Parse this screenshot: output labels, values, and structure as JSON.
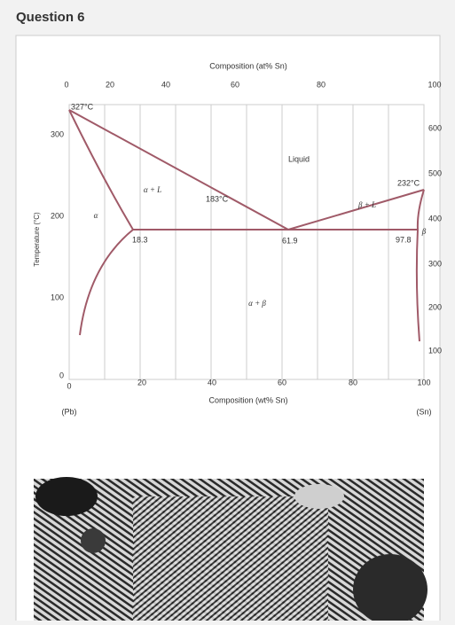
{
  "header": {
    "title": "Question 6"
  },
  "diagram": {
    "top_axis_title": "Composition (at% Sn)",
    "top_ticks": [
      0,
      20,
      40,
      60,
      80,
      100
    ],
    "bottom_axis_title": "Composition (wt% Sn)",
    "bottom_ticks": [
      0,
      20,
      40,
      60,
      80,
      100
    ],
    "left_axis_title": "Temperature (°C)",
    "left_ticks": [
      0,
      100,
      200,
      300
    ],
    "right_ticks": [
      100,
      200,
      300,
      400,
      500,
      600
    ],
    "end_labels": [
      "(Pb)",
      "(Sn)"
    ],
    "annotations": [
      "327°C",
      "232°C",
      "183°C",
      "18.3",
      "61.9",
      "97.8"
    ],
    "regions": [
      "Liquid",
      "α + L",
      "β + L",
      "α + β",
      "α",
      "β"
    ]
  }
}
